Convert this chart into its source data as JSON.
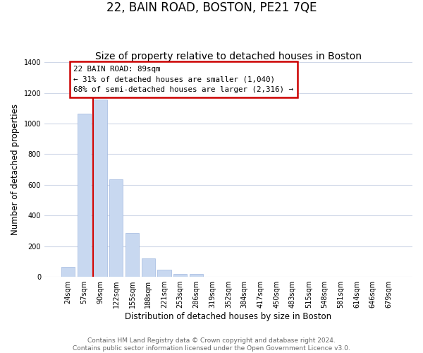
{
  "title": "22, BAIN ROAD, BOSTON, PE21 7QE",
  "subtitle": "Size of property relative to detached houses in Boston",
  "xlabel": "Distribution of detached houses by size in Boston",
  "ylabel": "Number of detached properties",
  "bar_labels": [
    "24sqm",
    "57sqm",
    "90sqm",
    "122sqm",
    "155sqm",
    "188sqm",
    "221sqm",
    "253sqm",
    "286sqm",
    "319sqm",
    "352sqm",
    "384sqm",
    "417sqm",
    "450sqm",
    "483sqm",
    "515sqm",
    "548sqm",
    "581sqm",
    "614sqm",
    "646sqm",
    "679sqm"
  ],
  "bar_values": [
    65,
    1065,
    1155,
    635,
    285,
    120,
    45,
    20,
    20,
    0,
    0,
    0,
    0,
    0,
    0,
    0,
    0,
    0,
    0,
    0,
    0
  ],
  "bar_color": "#c8d8f0",
  "bar_edge_color": "#a0b8e0",
  "highlighted_bar_index": 2,
  "highlight_line_color": "#cc0000",
  "annotation_line1": "22 BAIN ROAD: 89sqm",
  "annotation_line2": "← 31% of detached houses are smaller (1,040)",
  "annotation_line3": "68% of semi-detached houses are larger (2,316) →",
  "annotation_box_edge_color": "#cc0000",
  "ylim": [
    0,
    1400
  ],
  "yticks": [
    0,
    200,
    400,
    600,
    800,
    1000,
    1200,
    1400
  ],
  "footer_line1": "Contains HM Land Registry data © Crown copyright and database right 2024.",
  "footer_line2": "Contains public sector information licensed under the Open Government Licence v3.0.",
  "background_color": "#ffffff",
  "grid_color": "#d0d8e8",
  "title_fontsize": 12,
  "subtitle_fontsize": 10,
  "axis_label_fontsize": 8.5,
  "tick_fontsize": 7,
  "footer_fontsize": 6.5
}
